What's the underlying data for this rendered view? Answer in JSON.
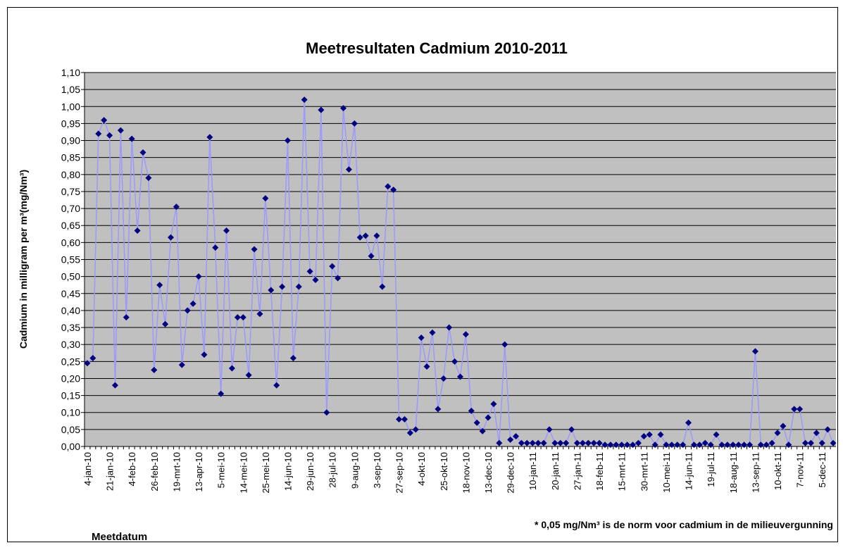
{
  "chart_data": {
    "type": "line",
    "title": "Meetresultaten Cadmium 2010-2011",
    "ylabel": "Cadmium in milligram per m³(mg/Nm³)",
    "xlabel": "Meetdatum",
    "annotation": "* 0,05 mg/Nm³ is de norm voor cadmium in de milieuvergunning",
    "categories": [
      "4-jan-10",
      null,
      null,
      null,
      "21-jan-10",
      null,
      null,
      null,
      "4-feb-10",
      null,
      null,
      null,
      "26-feb-10",
      null,
      null,
      null,
      "19-mrt-10",
      null,
      null,
      null,
      "13-apr-10",
      null,
      null,
      null,
      "5-mei-10",
      null,
      null,
      null,
      "14-mei-10",
      null,
      null,
      null,
      "25-mei-10",
      null,
      null,
      null,
      "14-jun-10",
      null,
      null,
      null,
      "29-jun-10",
      null,
      null,
      null,
      "28-jul-10",
      null,
      null,
      null,
      "9-aug-10",
      null,
      null,
      null,
      "3-sep-10",
      null,
      null,
      null,
      "27-sep-10",
      null,
      null,
      null,
      "4-okt-10",
      null,
      null,
      null,
      "25-okt-10",
      null,
      null,
      null,
      "18-nov-10",
      null,
      null,
      null,
      "13-dec-10",
      null,
      null,
      null,
      "29-dec-10",
      null,
      null,
      null,
      "10-jan-11",
      null,
      null,
      null,
      "20-jan-11",
      null,
      null,
      null,
      "27-jan-11",
      null,
      null,
      null,
      "18-feb-11",
      null,
      null,
      null,
      "15-mrt-11",
      null,
      null,
      null,
      "30-mrt-11",
      null,
      null,
      null,
      "10-mei-11",
      null,
      null,
      null,
      "14-jun-11",
      null,
      null,
      null,
      "19-jul-11",
      null,
      null,
      null,
      "18-aug-11",
      null,
      null,
      null,
      "13-sep-11",
      null,
      null,
      null,
      "10-okt-11",
      null,
      null,
      null,
      "7-nov-11",
      null,
      null,
      null,
      "5-dec-11",
      null,
      null
    ],
    "series": [
      {
        "color": "#9999ff",
        "marker_color": "#000080",
        "values": [
          0.245,
          0.26,
          0.92,
          0.96,
          0.915,
          0.18,
          0.93,
          0.38,
          0.905,
          0.635,
          0.865,
          0.79,
          0.225,
          0.475,
          0.36,
          0.615,
          0.705,
          0.24,
          0.4,
          0.42,
          0.5,
          0.27,
          0.91,
          0.585,
          0.155,
          0.635,
          0.23,
          0.38,
          0.38,
          0.21,
          0.58,
          0.39,
          0.73,
          0.46,
          0.18,
          0.47,
          0.9,
          0.26,
          0.47,
          1.02,
          0.515,
          0.49,
          0.99,
          0.1,
          0.53,
          0.495,
          0.995,
          0.815,
          0.95,
          0.615,
          0.62,
          0.56,
          0.62,
          0.47,
          0.765,
          0.755,
          0.08,
          0.08,
          0.04,
          0.05,
          0.32,
          0.235,
          0.335,
          0.11,
          0.2,
          0.35,
          0.25,
          0.205,
          0.33,
          0.105,
          0.07,
          0.045,
          0.085,
          0.125,
          0.01,
          0.3,
          0.02,
          0.03,
          0.01,
          0.01,
          0.01,
          0.01,
          0.01,
          0.05,
          0.01,
          0.01,
          0.01,
          0.05,
          0.01,
          0.01,
          0.01,
          0.01,
          0.01,
          0.005,
          0.005,
          0.005,
          0.005,
          0.005,
          0.005,
          0.01,
          0.03,
          0.035,
          0.005,
          0.035,
          0.005,
          0.005,
          0.005,
          0.005,
          0.07,
          0.005,
          0.005,
          0.01,
          0.005,
          0.035,
          0.005,
          0.005,
          0.005,
          0.005,
          0.005,
          0.005,
          0.28,
          0.005,
          0.005,
          0.01,
          0.04,
          0.06,
          0.005,
          0.11,
          0.11,
          0.01,
          0.01,
          0.04,
          0.01,
          0.05,
          0.01
        ]
      }
    ],
    "ylim": [
      0,
      1.1
    ],
    "yticks": [
      {
        "value": 0,
        "label": "0,00"
      },
      {
        "value": 0.05,
        "label": "0,05"
      },
      {
        "value": 0.1,
        "label": "0,10"
      },
      {
        "value": 0.15,
        "label": "0,15"
      },
      {
        "value": 0.2,
        "label": "0,20"
      },
      {
        "value": 0.25,
        "label": "0,25"
      },
      {
        "value": 0.3,
        "label": "0,30"
      },
      {
        "value": 0.35,
        "label": "0,35"
      },
      {
        "value": 0.4,
        "label": "0,40"
      },
      {
        "value": 0.45,
        "label": "0,45"
      },
      {
        "value": 0.5,
        "label": "0,50"
      },
      {
        "value": 0.55,
        "label": "0,55"
      },
      {
        "value": 0.6,
        "label": "0,60"
      },
      {
        "value": 0.65,
        "label": "0,65"
      },
      {
        "value": 0.7,
        "label": "0,70"
      },
      {
        "value": 0.75,
        "label": "0,75"
      },
      {
        "value": 0.8,
        "label": "0,80"
      },
      {
        "value": 0.85,
        "label": "0,85"
      },
      {
        "value": 0.9,
        "label": "0,90"
      },
      {
        "value": 0.95,
        "label": "0,95"
      },
      {
        "value": 1.0,
        "label": "1,00"
      },
      {
        "value": 1.05,
        "label": "1,05"
      },
      {
        "value": 1.1,
        "label": "1,10"
      }
    ],
    "grid": true,
    "plot_background": "#c0c0c0"
  }
}
